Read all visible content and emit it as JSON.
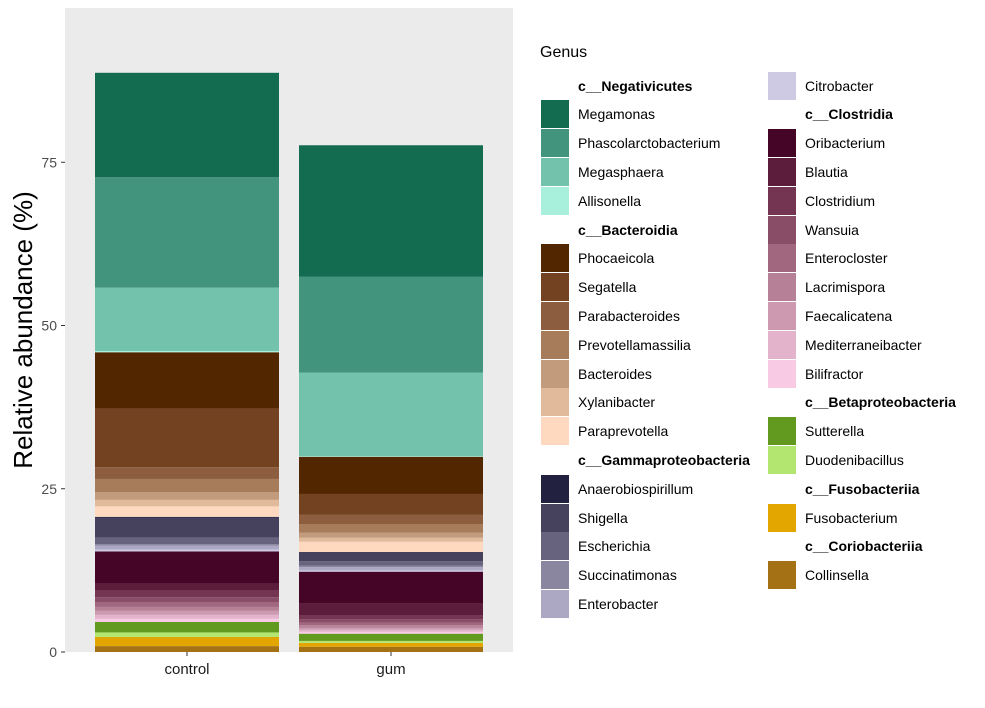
{
  "chart_data": {
    "type": "bar",
    "stacked": true,
    "ylabel": "Relative abundance (%)",
    "xlabel": "",
    "ylim": [
      0,
      98
    ],
    "yticks": [
      0,
      25,
      50,
      75
    ],
    "categories": [
      "control",
      "gum"
    ],
    "grid": false,
    "panel_background": "#EBEBEB",
    "legend": {
      "title": "Genus",
      "position": "right",
      "columns": [
        [
          {
            "label": "c__Negativicutes",
            "header": true
          },
          {
            "label": "Megamonas",
            "color": "#136B50"
          },
          {
            "label": "Phascolarctobacterium",
            "color": "#42957C"
          },
          {
            "label": "Megasphaera",
            "color": "#73C3AC"
          },
          {
            "label": "Allisonella",
            "color": "#A8F0DC"
          },
          {
            "label": "c__Bacteroidia",
            "header": true
          },
          {
            "label": "Phocaeicola",
            "color": "#522700"
          },
          {
            "label": "Segatella",
            "color": "#734221"
          },
          {
            "label": "Parabacteroides",
            "color": "#8C5D3E"
          },
          {
            "label": "Prevotellamassilia",
            "color": "#A67C5B"
          },
          {
            "label": "Bacteroides",
            "color": "#C29A7C"
          },
          {
            "label": "Xylanibacter",
            "color": "#E1BA9B"
          },
          {
            "label": "Paraprevotella",
            "color": "#FFD9BF"
          },
          {
            "label": "c__Gammaproteobacteria",
            "header": true
          },
          {
            "label": "Anaerobiospirillum",
            "color": "#222140"
          },
          {
            "label": "Shigella",
            "color": "#46425E"
          },
          {
            "label": "Escherichia",
            "color": "#67637F"
          },
          {
            "label": "Succinatimonas",
            "color": "#8A86A0"
          },
          {
            "label": "Enterobacter",
            "color": "#ACA8C4"
          }
        ],
        [
          {
            "label": "Citrobacter",
            "color": "#CECAE4"
          },
          {
            "label": "c__Clostridia",
            "header": true
          },
          {
            "label": "Oribacterium",
            "color": "#450527"
          },
          {
            "label": "Blautia",
            "color": "#5C1D3D"
          },
          {
            "label": "Clostridium",
            "color": "#733552"
          },
          {
            "label": "Wansuia",
            "color": "#8A4D68"
          },
          {
            "label": "Enterocloster",
            "color": "#A0677F"
          },
          {
            "label": "Lacrimispora",
            "color": "#B68096"
          },
          {
            "label": "Faecalicatena",
            "color": "#CC99B0"
          },
          {
            "label": "Mediterraneibacter",
            "color": "#E2B3CB"
          },
          {
            "label": "Bilifractor",
            "color": "#F8CAE3"
          },
          {
            "label": "c__Betaproteobacteria",
            "header": true
          },
          {
            "label": "Sutterella",
            "color": "#619A1E"
          },
          {
            "label": "Duodenibacillus",
            "color": "#B2E670"
          },
          {
            "label": "c__Fusobacteriia",
            "header": true
          },
          {
            "label": "Fusobacterium",
            "color": "#E3A600"
          },
          {
            "label": "c__Coriobacteriia",
            "header": true
          },
          {
            "label": "Collinsella",
            "color": "#A57115"
          }
        ]
      ]
    },
    "series": [
      {
        "name": "Collinsella",
        "color": "#A57115",
        "values": [
          0.9,
          0.8
        ]
      },
      {
        "name": "Fusobacterium",
        "color": "#E3A600",
        "values": [
          1.4,
          0.6
        ]
      },
      {
        "name": "Duodenibacillus",
        "color": "#B2E670",
        "values": [
          0.7,
          0.3
        ]
      },
      {
        "name": "Sutterella",
        "color": "#619A1E",
        "values": [
          1.6,
          1.1
        ]
      },
      {
        "name": "Bilifractor",
        "color": "#F8CAE3",
        "values": [
          0.5,
          0.3
        ]
      },
      {
        "name": "Mediterraneibacter",
        "color": "#E2B3CB",
        "values": [
          0.6,
          0.3
        ]
      },
      {
        "name": "Faecalicatena",
        "color": "#CC99B0",
        "values": [
          0.6,
          0.3
        ]
      },
      {
        "name": "Lacrimispora",
        "color": "#B68096",
        "values": [
          0.6,
          0.4
        ]
      },
      {
        "name": "Enterocloster",
        "color": "#A0677F",
        "values": [
          0.7,
          0.4
        ]
      },
      {
        "name": "Wansuia",
        "color": "#8A4D68",
        "values": [
          0.8,
          0.5
        ]
      },
      {
        "name": "Clostridium",
        "color": "#733552",
        "values": [
          1.0,
          0.6
        ]
      },
      {
        "name": "Blautia",
        "color": "#5C1D3D",
        "values": [
          1.1,
          1.9
        ]
      },
      {
        "name": "Oribacterium",
        "color": "#450527",
        "values": [
          4.9,
          4.8
        ]
      },
      {
        "name": "Citrobacter",
        "color": "#CECAE4",
        "values": [
          0.3,
          0.2
        ]
      },
      {
        "name": "Enterobacter",
        "color": "#ACA8C4",
        "values": [
          0.6,
          0.5
        ]
      },
      {
        "name": "Succinatimonas",
        "color": "#8A86A0",
        "values": [
          0.2,
          0.2
        ]
      },
      {
        "name": "Escherichia",
        "color": "#67637F",
        "values": [
          1.0,
          0.7
        ]
      },
      {
        "name": "Shigella",
        "color": "#46425E",
        "values": [
          3.1,
          1.2
        ]
      },
      {
        "name": "Anaerobiospirillum",
        "color": "#222140",
        "values": [
          0.1,
          0.2
        ]
      },
      {
        "name": "Paraprevotella",
        "color": "#FFD9BF",
        "values": [
          1.6,
          1.6
        ]
      },
      {
        "name": "Xylanibacter",
        "color": "#E1BA9B",
        "values": [
          1.0,
          0.6
        ]
      },
      {
        "name": "Bacteroides",
        "color": "#C29A7C",
        "values": [
          1.2,
          0.8
        ]
      },
      {
        "name": "Prevotellamassilia",
        "color": "#A67C5B",
        "values": [
          2.0,
          1.3
        ]
      },
      {
        "name": "Parabacteroides",
        "color": "#8C5D3E",
        "values": [
          1.8,
          1.4
        ]
      },
      {
        "name": "Segatella",
        "color": "#734221",
        "values": [
          9.0,
          3.2
        ]
      },
      {
        "name": "Phocaeicola",
        "color": "#522700",
        "values": [
          8.6,
          5.7
        ]
      },
      {
        "name": "Allisonella",
        "color": "#A8F0DC",
        "values": [
          0.2,
          0.1
        ]
      },
      {
        "name": "Megasphaera",
        "color": "#73C3AC",
        "values": [
          9.7,
          12.8
        ]
      },
      {
        "name": "Phascolarctobacterium",
        "color": "#42957C",
        "values": [
          16.9,
          14.7
        ]
      },
      {
        "name": "Megamonas",
        "color": "#136B50",
        "values": [
          16.0,
          20.1
        ]
      }
    ]
  }
}
